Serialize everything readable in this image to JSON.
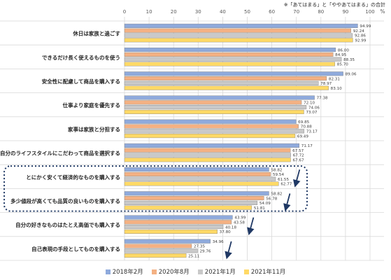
{
  "note": "※「あてはまる」と「ややあてはまる」の合計",
  "chart_data": {
    "type": "bar",
    "orientation": "horizontal",
    "unit": "%",
    "xlim": [
      0,
      100
    ],
    "xticks": [
      0,
      10,
      20,
      30,
      40,
      50,
      60,
      70,
      80,
      90,
      100
    ],
    "grid": true,
    "legend_position": "bottom",
    "categories": [
      "休日は家族と過ごす",
      "できるだけ長く使えるものを使う",
      "安全性に配慮して商品を購入する",
      "仕事より家庭を優先する",
      "家事は家族と分担する",
      "自分のライフスタイルにこだわって商品を選択する",
      "とにかく安くて経済的なものを購入する",
      "多少値段が高くても品質の良いものを購入する",
      "自分の好きなものはたとえ高価でも購入する",
      "自己表現の手段としてものを購入する"
    ],
    "series": [
      {
        "name": "2018年2月",
        "color": "#8faadc",
        "values": [
          94.99,
          86.0,
          89.06,
          77.38,
          69.85,
          71.17,
          58.82,
          58.82,
          43.99,
          34.96
        ]
      },
      {
        "name": "2020年8月",
        "color": "#f4b183",
        "values": [
          92.24,
          84.95,
          82.31,
          72.1,
          70.88,
          67.57,
          59.54,
          56.78,
          43.58,
          27.35
        ]
      },
      {
        "name": "2021年1月",
        "color": "#c9c9c9",
        "values": [
          92.86,
          88.35,
          78.97,
          74.06,
          73.17,
          67.72,
          61.55,
          54.09,
          40.18,
          29.76
        ]
      },
      {
        "name": "2021年11月",
        "color": "#ffd966",
        "values": [
          92.99,
          85.7,
          83.1,
          73.07,
          69.49,
          67.67,
          62.77,
          51.81,
          37.8,
          25.11
        ]
      }
    ],
    "highlight_box_categories": [
      6,
      7
    ],
    "trend_arrow_categories": [
      6,
      7,
      8,
      9
    ]
  }
}
